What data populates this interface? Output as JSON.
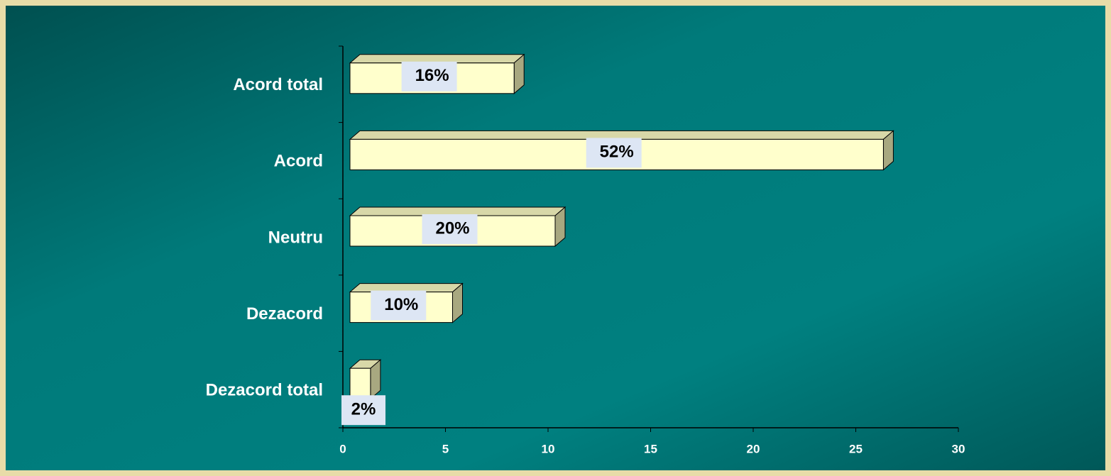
{
  "chart_data": {
    "type": "bar3d_h",
    "categories": [
      "Acord total",
      "Acord",
      "Neutru",
      "Dezacord",
      "Dezacord total"
    ],
    "values": [
      8,
      26,
      10,
      5,
      1
    ],
    "value_labels": [
      "16%",
      "52%",
      "20%",
      "10%",
      "2%"
    ],
    "color": "#ffffcc",
    "xlim": [
      0,
      30
    ],
    "xticks": [
      0,
      5,
      10,
      15,
      20,
      25,
      30
    ]
  }
}
